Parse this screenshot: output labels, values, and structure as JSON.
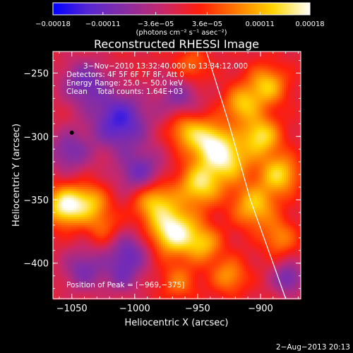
{
  "chart_data": {
    "type": "heatmap",
    "title": "Reconstructed RHESSI Image",
    "xlabel": "Heliocentric X (arcsec)",
    "ylabel": "Heliocentric Y (arcsec)",
    "xlim": [
      -1065,
      -868
    ],
    "ylim": [
      -428,
      -233
    ],
    "x_ticks": [
      -1050,
      -1000,
      -950,
      -900
    ],
    "y_ticks": [
      -250,
      -300,
      -350,
      -400
    ],
    "x_tick_labels": [
      "−1050",
      "−1000",
      "−950",
      "−900"
    ],
    "y_tick_labels": [
      "−250",
      "−300",
      "−350",
      "−400"
    ],
    "colorbar": {
      "range": [
        -0.00018,
        0.00018
      ],
      "ticks": [
        -0.00018,
        -0.00011,
        -3.6e-05,
        3.6e-05,
        0.00011,
        0.00018
      ],
      "tick_labels": [
        "−0.00018",
        "−0.00011",
        "−3.6e−05",
        "3.6e−05",
        "0.00011",
        "0.00018"
      ],
      "label": "(photons cm⁻² s⁻¹ asec⁻²)",
      "colors": [
        "#0000ff",
        "#5a28d0",
        "#8a2da0",
        "#c8286a",
        "#ff1e0a",
        "#ff7a00",
        "#ffd600",
        "#ffffff"
      ]
    },
    "annotations": [
      "3−Nov−2010 13:32:40.000 to 13:34:12.000",
      "Detectors: 4F 5F 6F 7F 8F, Att 0",
      "Energy Range: 25.0 − 50.0 keV",
      "Clean    Total counts: 1.64E+03",
      "Position of Peak = [−969,−375]"
    ],
    "peak": {
      "x": -969,
      "y": -375
    },
    "limb_curve": [
      [
        -943,
        -233
      ],
      [
        -925,
        -290
      ],
      [
        -908,
        -350
      ],
      [
        -890,
        -400
      ],
      [
        -880,
        -428
      ]
    ],
    "components": [
      {
        "x": -1012,
        "y": -288,
        "amp": -0.00014,
        "sigma": 16
      },
      {
        "x": -1040,
        "y": -258,
        "amp": -0.0001,
        "sigma": 13
      },
      {
        "x": -1052,
        "y": -312,
        "amp": -9e-05,
        "sigma": 12
      },
      {
        "x": -995,
        "y": -330,
        "amp": -0.00011,
        "sigma": 13
      },
      {
        "x": -965,
        "y": -268,
        "amp": -8e-05,
        "sigma": 12
      },
      {
        "x": -955,
        "y": -245,
        "amp": 7e-05,
        "sigma": 10
      },
      {
        "x": -1040,
        "y": -405,
        "amp": -9e-05,
        "sigma": 12
      },
      {
        "x": -1005,
        "y": -392,
        "amp": -0.0001,
        "sigma": 12
      },
      {
        "x": -1025,
        "y": -372,
        "amp": 6e-05,
        "sigma": 10
      },
      {
        "x": -1055,
        "y": -355,
        "amp": 0.00017,
        "sigma": 11
      },
      {
        "x": -1035,
        "y": -352,
        "amp": 0.0001,
        "sigma": 10
      },
      {
        "x": -985,
        "y": -350,
        "amp": 0.00013,
        "sigma": 12
      },
      {
        "x": -969,
        "y": -375,
        "amp": 0.00018,
        "sigma": 13
      },
      {
        "x": -948,
        "y": -338,
        "amp": 0.00014,
        "sigma": 12
      },
      {
        "x": -940,
        "y": -305,
        "amp": 0.00015,
        "sigma": 12
      },
      {
        "x": -925,
        "y": -320,
        "amp": 0.00012,
        "sigma": 12
      },
      {
        "x": -915,
        "y": -275,
        "amp": 0.00011,
        "sigma": 10
      },
      {
        "x": -895,
        "y": -260,
        "amp": 0.00012,
        "sigma": 11
      },
      {
        "x": -900,
        "y": -300,
        "amp": 0.00014,
        "sigma": 11
      },
      {
        "x": -885,
        "y": -330,
        "amp": 0.00013,
        "sigma": 11
      },
      {
        "x": -905,
        "y": -355,
        "amp": 0.00012,
        "sigma": 12
      },
      {
        "x": -945,
        "y": -385,
        "amp": 0.0001,
        "sigma": 10
      },
      {
        "x": -925,
        "y": -410,
        "amp": 9e-05,
        "sigma": 10
      },
      {
        "x": -885,
        "y": -380,
        "amp": 8e-05,
        "sigma": 10
      },
      {
        "x": -878,
        "y": -412,
        "amp": -0.0001,
        "sigma": 9
      },
      {
        "x": -965,
        "y": -415,
        "amp": 7e-05,
        "sigma": 10
      },
      {
        "x": -1010,
        "y": -412,
        "amp": -6e-05,
        "sigma": 10
      },
      {
        "x": -960,
        "y": -295,
        "amp": 9e-05,
        "sigma": 10
      }
    ]
  },
  "footer": {
    "date": "2−Aug−2013 20:13"
  }
}
